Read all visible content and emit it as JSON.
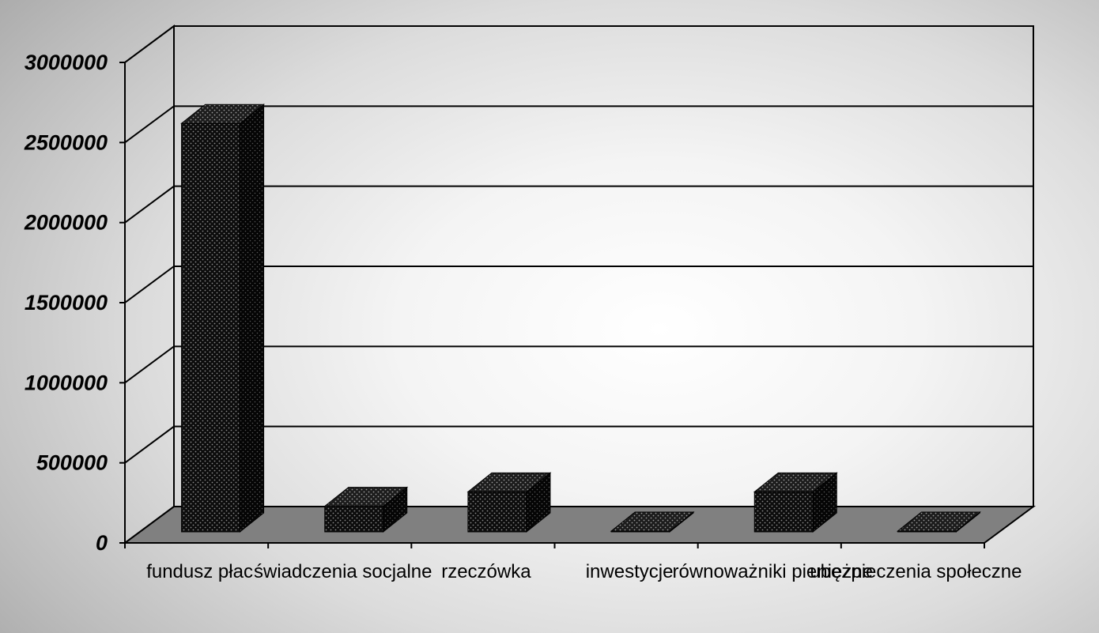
{
  "chart_data": {
    "type": "bar",
    "style": "3d-column",
    "categories": [
      "fundusz płac",
      "świadczenia socjalne",
      "rzeczówka",
      "inwestycje",
      "równoważniki pieniężne",
      "ubezpieczenia społeczne"
    ],
    "values": [
      2550000,
      160000,
      250000,
      2000,
      250000,
      2000
    ],
    "y_tick_labels": [
      "0",
      "500000",
      "1000000",
      "1500000",
      "2000000",
      "2500000",
      "3000000"
    ],
    "ylim": [
      0,
      3000000
    ],
    "title": "",
    "xlabel": "",
    "ylabel": "",
    "grid": true,
    "legend": "none",
    "colors": {
      "bar": "#111111",
      "bar_dots": "#8a8a8a",
      "floor": "#808080",
      "grid": "#000000"
    }
  }
}
